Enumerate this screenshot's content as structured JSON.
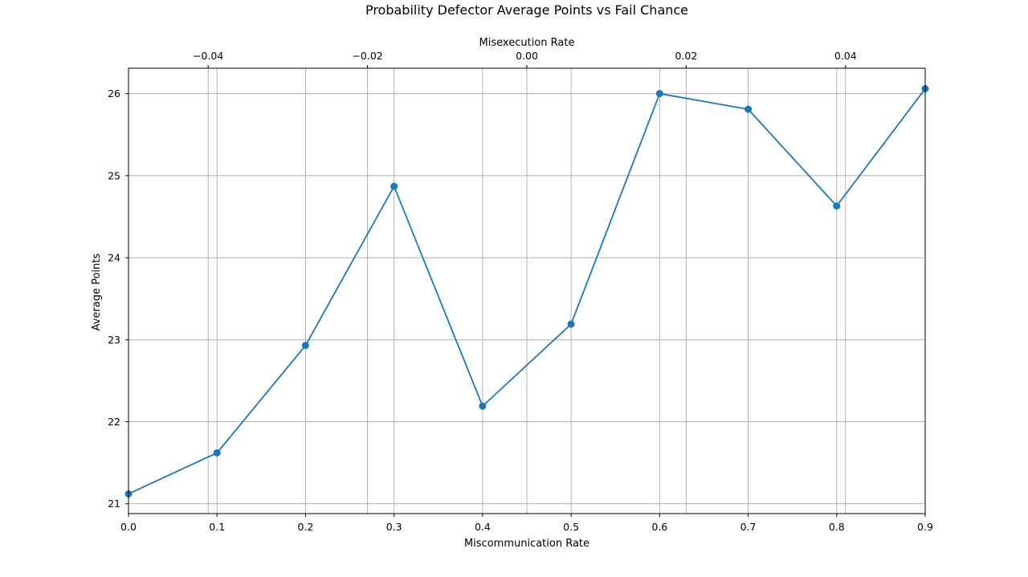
{
  "chart_data": {
    "type": "line",
    "title": "Probability Defector Average Points vs Fail Chance",
    "xlabel": "Miscommunication Rate",
    "ylabel": "Average Points",
    "x2label": "Misexecution Rate",
    "xlim": [
      0.0,
      0.9
    ],
    "ylim": [
      20.88,
      26.31
    ],
    "x2lim": [
      -0.05,
      0.05
    ],
    "grid": true,
    "legend": "none",
    "x_ticks": [
      "0.0",
      "0.1",
      "0.2",
      "0.3",
      "0.4",
      "0.5",
      "0.6",
      "0.7",
      "0.8",
      "0.9"
    ],
    "y_ticks": [
      "21",
      "22",
      "23",
      "24",
      "25",
      "26"
    ],
    "x2_ticks": [
      "−0.04",
      "−0.02",
      "0.00",
      "0.02",
      "0.04"
    ],
    "series": [
      {
        "color": "#1f77b4",
        "marker": "circle",
        "x": [
          0.0,
          0.1,
          0.2,
          0.3,
          0.4,
          0.5,
          0.6,
          0.7,
          0.8,
          0.9
        ],
        "y": [
          21.12,
          21.62,
          22.93,
          24.87,
          22.19,
          23.19,
          26.0,
          25.81,
          24.63,
          26.06
        ]
      }
    ],
    "secondary_gridlines_x2": [
      -0.04,
      -0.02,
      0.0,
      0.02,
      0.04
    ]
  }
}
